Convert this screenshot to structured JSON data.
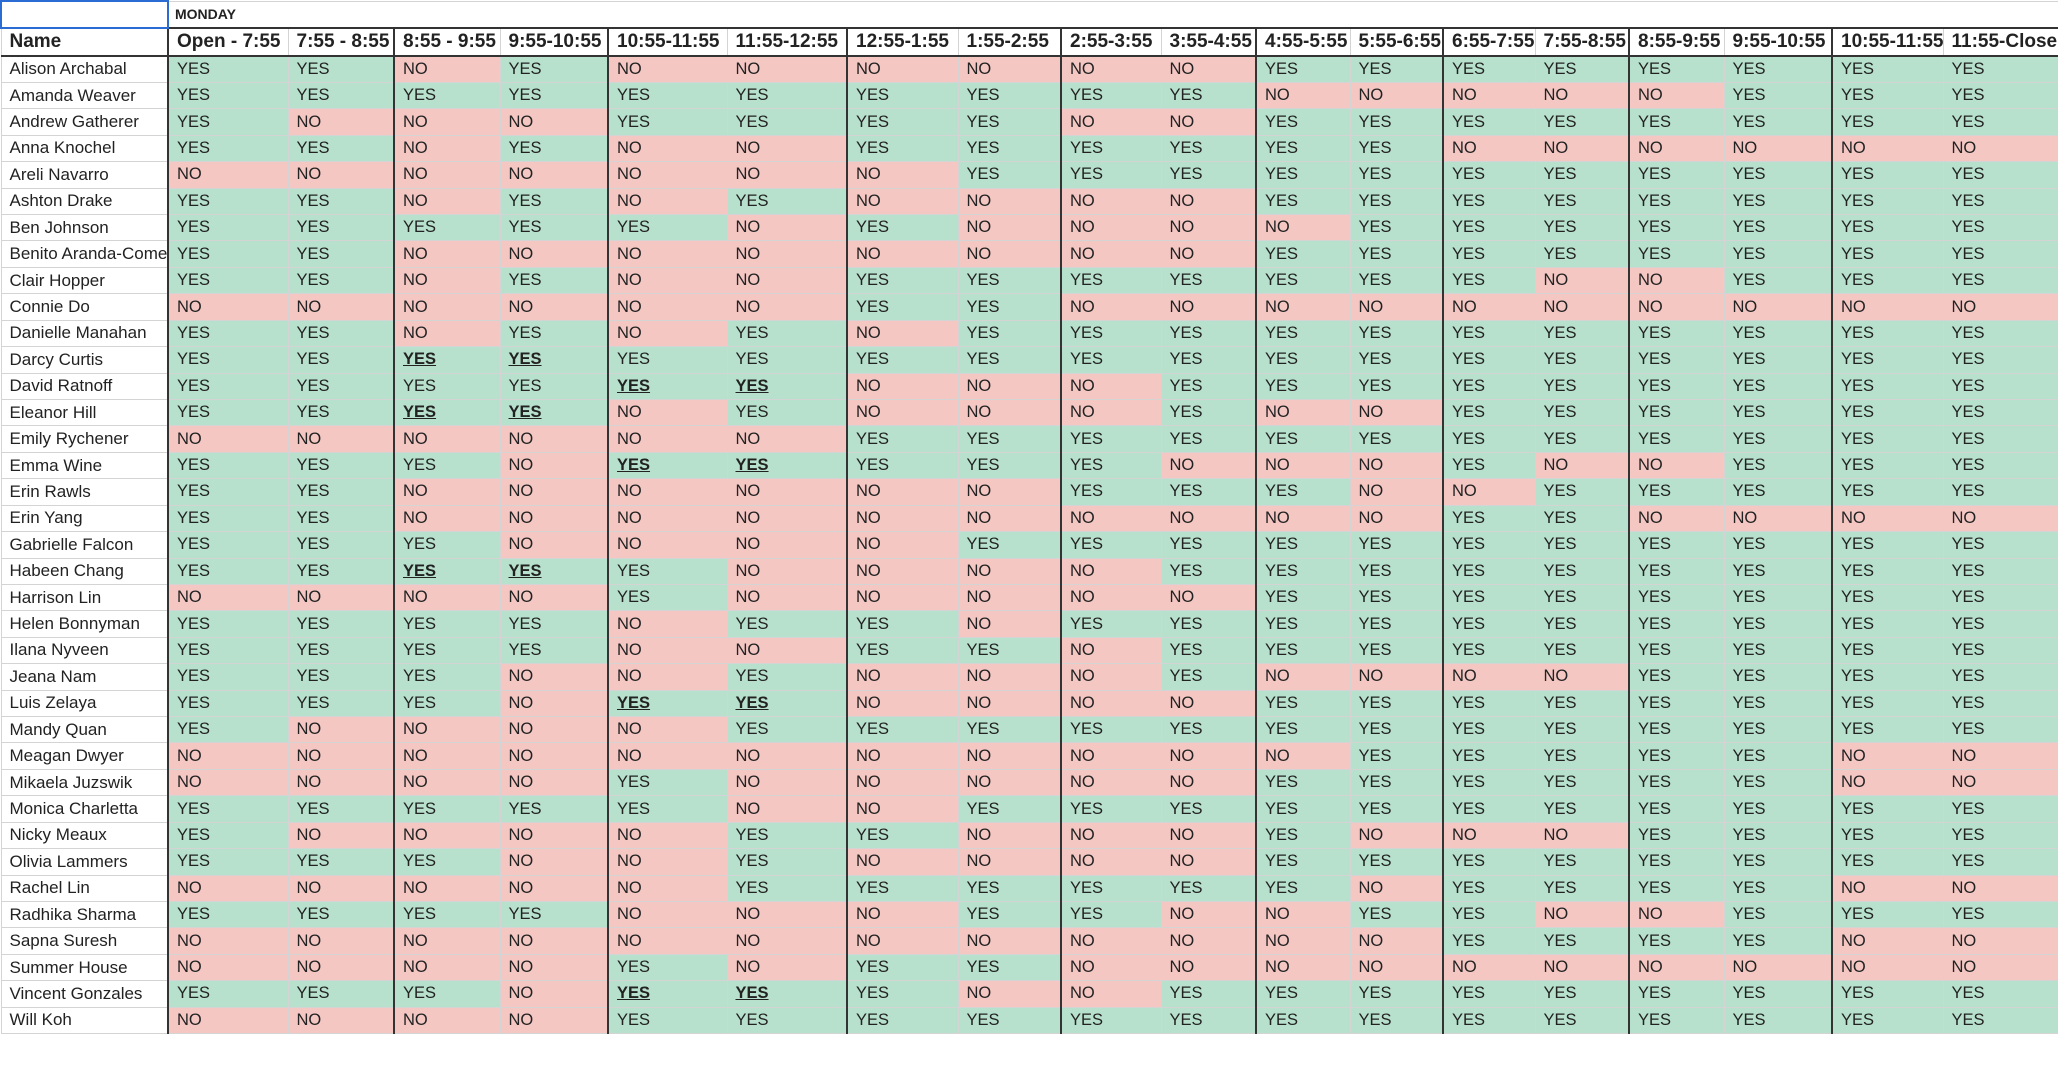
{
  "sheet": {
    "day_label": "MONDAY",
    "name_header": "Name",
    "time_slots": [
      "Open - 7:55",
      "7:55 - 8:55",
      "8:55 - 9:55",
      "9:55-10:55",
      "10:55-11:55",
      "11:55-12:55",
      "12:55-1:55",
      "1:55-2:55",
      "2:55-3:55",
      "3:55-4:55",
      "4:55-5:55",
      "5:55-6:55",
      "6:55-7:55",
      "7:55-8:55",
      "8:55-9:55",
      "9:55-10:55",
      "10:55-11:55",
      "11:55-Close"
    ],
    "colors": {
      "yes": "#b7e1cd",
      "no": "#f4c7c3"
    },
    "rows": [
      {
        "name": "Alison Archabal",
        "values": [
          "YES",
          "YES",
          "NO",
          "YES",
          "NO",
          "NO",
          "NO",
          "NO",
          "NO",
          "NO",
          "YES",
          "YES",
          "YES",
          "YES",
          "YES",
          "YES",
          "YES",
          "YES"
        ]
      },
      {
        "name": "Amanda Weaver",
        "values": [
          "YES",
          "YES",
          "YES",
          "YES",
          "YES",
          "YES",
          "YES",
          "YES",
          "YES",
          "YES",
          "NO",
          "NO",
          "NO",
          "NO",
          "NO",
          "YES",
          "YES",
          "YES"
        ]
      },
      {
        "name": "Andrew Gatherer",
        "values": [
          "YES",
          "NO",
          "NO",
          "NO",
          "YES",
          "YES",
          "YES",
          "YES",
          "NO",
          "NO",
          "YES",
          "YES",
          "YES",
          "YES",
          "YES",
          "YES",
          "YES",
          "YES"
        ]
      },
      {
        "name": "Anna Knochel",
        "values": [
          "YES",
          "YES",
          "NO",
          "YES",
          "NO",
          "NO",
          "YES",
          "YES",
          "YES",
          "YES",
          "YES",
          "YES",
          "NO",
          "NO",
          "NO",
          "NO",
          "NO",
          "NO"
        ]
      },
      {
        "name": "Areli Navarro",
        "values": [
          "NO",
          "NO",
          "NO",
          "NO",
          "NO",
          "NO",
          "NO",
          "YES",
          "YES",
          "YES",
          "YES",
          "YES",
          "YES",
          "YES",
          "YES",
          "YES",
          "YES",
          "YES"
        ]
      },
      {
        "name": "Ashton Drake",
        "values": [
          "YES",
          "YES",
          "NO",
          "YES",
          "NO",
          "YES",
          "NO",
          "NO",
          "NO",
          "NO",
          "YES",
          "YES",
          "YES",
          "YES",
          "YES",
          "YES",
          "YES",
          "YES"
        ]
      },
      {
        "name": "Ben Johnson",
        "values": [
          "YES",
          "YES",
          "YES",
          "YES",
          "YES",
          "NO",
          "YES",
          "NO",
          "NO",
          "NO",
          "NO",
          "YES",
          "YES",
          "YES",
          "YES",
          "YES",
          "YES",
          "YES"
        ]
      },
      {
        "name": "Benito Aranda-Comer",
        "values": [
          "YES",
          "YES",
          "NO",
          "NO",
          "NO",
          "NO",
          "NO",
          "NO",
          "NO",
          "NO",
          "YES",
          "YES",
          "YES",
          "YES",
          "YES",
          "YES",
          "YES",
          "YES"
        ]
      },
      {
        "name": "Clair Hopper",
        "values": [
          "YES",
          "YES",
          "NO",
          "YES",
          "NO",
          "NO",
          "YES",
          "YES",
          "YES",
          "YES",
          "YES",
          "YES",
          "YES",
          "NO",
          "NO",
          "YES",
          "YES",
          "YES"
        ]
      },
      {
        "name": "Connie Do",
        "values": [
          "NO",
          "NO",
          "NO",
          "NO",
          "NO",
          "NO",
          "YES",
          "YES",
          "NO",
          "NO",
          "NO",
          "NO",
          "NO",
          "NO",
          "NO",
          "NO",
          "NO",
          "NO"
        ]
      },
      {
        "name": "Danielle Manahan",
        "values": [
          "YES",
          "YES",
          "NO",
          "YES",
          "NO",
          "YES",
          "NO",
          "YES",
          "YES",
          "YES",
          "YES",
          "YES",
          "YES",
          "YES",
          "YES",
          "YES",
          "YES",
          "YES"
        ]
      },
      {
        "name": "Darcy Curtis",
        "values": [
          "YES",
          "YES",
          "YES",
          "YES",
          "YES",
          "YES",
          "YES",
          "YES",
          "YES",
          "YES",
          "YES",
          "YES",
          "YES",
          "YES",
          "YES",
          "YES",
          "YES",
          "YES"
        ],
        "bold": [
          2,
          3
        ]
      },
      {
        "name": "David Ratnoff",
        "values": [
          "YES",
          "YES",
          "YES",
          "YES",
          "YES",
          "YES",
          "NO",
          "NO",
          "NO",
          "YES",
          "YES",
          "YES",
          "YES",
          "YES",
          "YES",
          "YES",
          "YES",
          "YES"
        ],
        "bold": [
          4,
          5
        ]
      },
      {
        "name": "Eleanor Hill",
        "values": [
          "YES",
          "YES",
          "YES",
          "YES",
          "NO",
          "YES",
          "NO",
          "NO",
          "NO",
          "YES",
          "NO",
          "NO",
          "YES",
          "YES",
          "YES",
          "YES",
          "YES",
          "YES"
        ],
        "bold": [
          2,
          3
        ]
      },
      {
        "name": "Emily Rychener",
        "values": [
          "NO",
          "NO",
          "NO",
          "NO",
          "NO",
          "NO",
          "YES",
          "YES",
          "YES",
          "YES",
          "YES",
          "YES",
          "YES",
          "YES",
          "YES",
          "YES",
          "YES",
          "YES"
        ]
      },
      {
        "name": "Emma Wine",
        "values": [
          "YES",
          "YES",
          "YES",
          "NO",
          "YES",
          "YES",
          "YES",
          "YES",
          "YES",
          "NO",
          "NO",
          "NO",
          "YES",
          "NO",
          "NO",
          "YES",
          "YES",
          "YES"
        ],
        "bold": [
          4,
          5
        ]
      },
      {
        "name": "Erin Rawls",
        "values": [
          "YES",
          "YES",
          "NO",
          "NO",
          "NO",
          "NO",
          "NO",
          "NO",
          "YES",
          "YES",
          "YES",
          "NO",
          "NO",
          "YES",
          "YES",
          "YES",
          "YES",
          "YES"
        ]
      },
      {
        "name": "Erin Yang",
        "values": [
          "YES",
          "YES",
          "NO",
          "NO",
          "NO",
          "NO",
          "NO",
          "NO",
          "NO",
          "NO",
          "NO",
          "NO",
          "YES",
          "YES",
          "NO",
          "NO",
          "NO",
          "NO"
        ]
      },
      {
        "name": "Gabrielle Falcon",
        "values": [
          "YES",
          "YES",
          "YES",
          "NO",
          "NO",
          "NO",
          "NO",
          "YES",
          "YES",
          "YES",
          "YES",
          "YES",
          "YES",
          "YES",
          "YES",
          "YES",
          "YES",
          "YES"
        ]
      },
      {
        "name": "Habeen Chang",
        "values": [
          "YES",
          "YES",
          "YES",
          "YES",
          "YES",
          "NO",
          "NO",
          "NO",
          "NO",
          "YES",
          "YES",
          "YES",
          "YES",
          "YES",
          "YES",
          "YES",
          "YES",
          "YES"
        ],
        "bold": [
          2,
          3
        ]
      },
      {
        "name": "Harrison Lin",
        "values": [
          "NO",
          "NO",
          "NO",
          "NO",
          "YES",
          "NO",
          "NO",
          "NO",
          "NO",
          "NO",
          "YES",
          "YES",
          "YES",
          "YES",
          "YES",
          "YES",
          "YES",
          "YES"
        ]
      },
      {
        "name": "Helen Bonnyman",
        "values": [
          "YES",
          "YES",
          "YES",
          "YES",
          "NO",
          "YES",
          "YES",
          "NO",
          "YES",
          "YES",
          "YES",
          "YES",
          "YES",
          "YES",
          "YES",
          "YES",
          "YES",
          "YES"
        ]
      },
      {
        "name": "Ilana Nyveen",
        "values": [
          "YES",
          "YES",
          "YES",
          "YES",
          "NO",
          "NO",
          "YES",
          "YES",
          "NO",
          "YES",
          "YES",
          "YES",
          "YES",
          "YES",
          "YES",
          "YES",
          "YES",
          "YES"
        ]
      },
      {
        "name": "Jeana Nam",
        "values": [
          "YES",
          "YES",
          "YES",
          "NO",
          "NO",
          "YES",
          "NO",
          "NO",
          "NO",
          "YES",
          "NO",
          "NO",
          "NO",
          "NO",
          "YES",
          "YES",
          "YES",
          "YES"
        ]
      },
      {
        "name": "Luis Zelaya",
        "values": [
          "YES",
          "YES",
          "YES",
          "NO",
          "YES",
          "YES",
          "NO",
          "NO",
          "NO",
          "NO",
          "YES",
          "YES",
          "YES",
          "YES",
          "YES",
          "YES",
          "YES",
          "YES"
        ],
        "bold": [
          4,
          5
        ]
      },
      {
        "name": "Mandy Quan",
        "values": [
          "YES",
          "NO",
          "NO",
          "NO",
          "NO",
          "YES",
          "YES",
          "YES",
          "YES",
          "YES",
          "YES",
          "YES",
          "YES",
          "YES",
          "YES",
          "YES",
          "YES",
          "YES"
        ]
      },
      {
        "name": "Meagan Dwyer",
        "values": [
          "NO",
          "NO",
          "NO",
          "NO",
          "NO",
          "NO",
          "NO",
          "NO",
          "NO",
          "NO",
          "NO",
          "YES",
          "YES",
          "YES",
          "YES",
          "YES",
          "NO",
          "NO"
        ]
      },
      {
        "name": "Mikaela Juzswik",
        "values": [
          "NO",
          "NO",
          "NO",
          "NO",
          "YES",
          "NO",
          "NO",
          "NO",
          "NO",
          "NO",
          "YES",
          "YES",
          "YES",
          "YES",
          "YES",
          "YES",
          "NO",
          "NO"
        ]
      },
      {
        "name": "Monica Charletta",
        "values": [
          "YES",
          "YES",
          "YES",
          "YES",
          "YES",
          "NO",
          "NO",
          "YES",
          "YES",
          "YES",
          "YES",
          "YES",
          "YES",
          "YES",
          "YES",
          "YES",
          "YES",
          "YES"
        ]
      },
      {
        "name": "Nicky Meaux",
        "values": [
          "YES",
          "NO",
          "NO",
          "NO",
          "NO",
          "YES",
          "YES",
          "NO",
          "NO",
          "NO",
          "YES",
          "NO",
          "NO",
          "NO",
          "YES",
          "YES",
          "YES",
          "YES"
        ]
      },
      {
        "name": "Olivia Lammers",
        "values": [
          "YES",
          "YES",
          "YES",
          "NO",
          "NO",
          "YES",
          "NO",
          "NO",
          "NO",
          "NO",
          "YES",
          "YES",
          "YES",
          "YES",
          "YES",
          "YES",
          "YES",
          "YES"
        ]
      },
      {
        "name": "Rachel Lin",
        "values": [
          "NO",
          "NO",
          "NO",
          "NO",
          "NO",
          "YES",
          "YES",
          "YES",
          "YES",
          "YES",
          "YES",
          "NO",
          "YES",
          "YES",
          "YES",
          "YES",
          "NO",
          "NO"
        ]
      },
      {
        "name": "Radhika Sharma",
        "values": [
          "YES",
          "YES",
          "YES",
          "YES",
          "NO",
          "NO",
          "NO",
          "YES",
          "YES",
          "NO",
          "NO",
          "YES",
          "YES",
          "NO",
          "NO",
          "YES",
          "YES",
          "YES"
        ]
      },
      {
        "name": "Sapna Suresh",
        "values": [
          "NO",
          "NO",
          "NO",
          "NO",
          "NO",
          "NO",
          "NO",
          "NO",
          "NO",
          "NO",
          "NO",
          "NO",
          "YES",
          "YES",
          "YES",
          "YES",
          "NO",
          "NO"
        ]
      },
      {
        "name": "Summer House",
        "values": [
          "NO",
          "NO",
          "NO",
          "NO",
          "YES",
          "NO",
          "YES",
          "YES",
          "NO",
          "NO",
          "NO",
          "NO",
          "NO",
          "NO",
          "NO",
          "NO",
          "NO",
          "NO"
        ]
      },
      {
        "name": "Vincent Gonzales",
        "values": [
          "YES",
          "YES",
          "YES",
          "NO",
          "YES",
          "YES",
          "YES",
          "NO",
          "NO",
          "YES",
          "YES",
          "YES",
          "YES",
          "YES",
          "YES",
          "YES",
          "YES",
          "YES"
        ],
        "bold": [
          4,
          5
        ]
      },
      {
        "name": "Will Koh",
        "values": [
          "NO",
          "NO",
          "NO",
          "NO",
          "YES",
          "YES",
          "YES",
          "YES",
          "YES",
          "YES",
          "YES",
          "YES",
          "YES",
          "YES",
          "YES",
          "YES",
          "YES",
          "YES"
        ]
      }
    ]
  }
}
